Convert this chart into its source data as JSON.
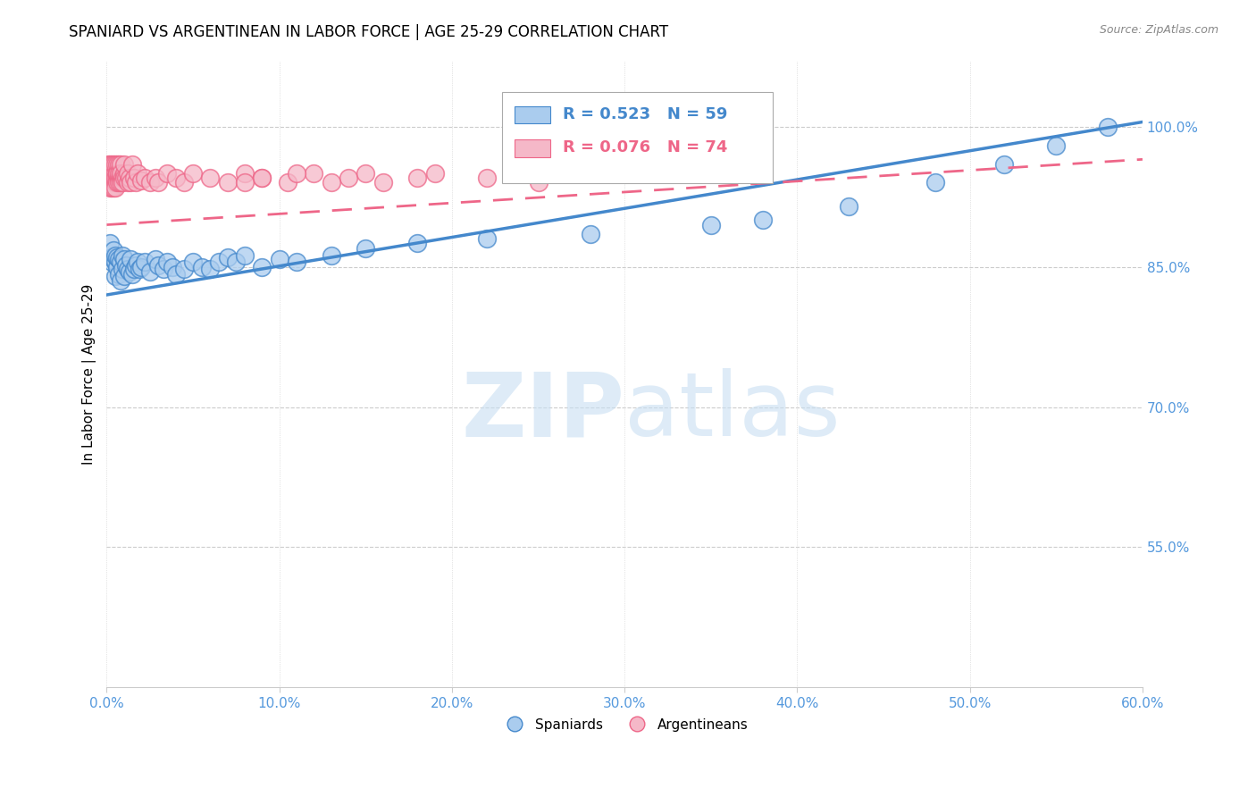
{
  "title": "SPANIARD VS ARGENTINEAN IN LABOR FORCE | AGE 25-29 CORRELATION CHART",
  "source_text": "Source: ZipAtlas.com",
  "ylabel": "In Labor Force | Age 25-29",
  "xlim": [
    0.0,
    0.6
  ],
  "ylim": [
    0.4,
    1.07
  ],
  "xticks": [
    0.0,
    0.1,
    0.2,
    0.3,
    0.4,
    0.5,
    0.6
  ],
  "xtick_labels": [
    "0.0%",
    "10.0%",
    "20.0%",
    "30.0%",
    "40.0%",
    "50.0%",
    "60.0%"
  ],
  "ytick_values": [
    0.55,
    0.7,
    0.85,
    1.0
  ],
  "ytick_labels": [
    "55.0%",
    "70.0%",
    "85.0%",
    "100.0%"
  ],
  "legend_blue_r": "R = 0.523",
  "legend_blue_n": "N = 59",
  "legend_pink_r": "R = 0.076",
  "legend_pink_n": "N = 74",
  "blue_color": "#aaccee",
  "pink_color": "#f5b8c8",
  "blue_line_color": "#4488cc",
  "pink_line_color": "#ee6688",
  "axis_color": "#5599dd",
  "grid_color": "#cccccc",
  "title_fontsize": 12,
  "label_fontsize": 11,
  "tick_fontsize": 11,
  "blue_trend_x0": 0.0,
  "blue_trend_y0": 0.82,
  "blue_trend_x1": 0.6,
  "blue_trend_y1": 1.005,
  "pink_trend_x0": 0.0,
  "pink_trend_y0": 0.895,
  "pink_trend_x1": 0.6,
  "pink_trend_y1": 0.965,
  "blue_scatter_x": [
    0.002,
    0.003,
    0.003,
    0.004,
    0.004,
    0.005,
    0.005,
    0.005,
    0.006,
    0.006,
    0.007,
    0.007,
    0.008,
    0.008,
    0.009,
    0.009,
    0.01,
    0.01,
    0.011,
    0.012,
    0.013,
    0.014,
    0.015,
    0.016,
    0.017,
    0.018,
    0.019,
    0.02,
    0.022,
    0.025,
    0.028,
    0.03,
    0.033,
    0.035,
    0.038,
    0.04,
    0.045,
    0.05,
    0.055,
    0.06,
    0.065,
    0.07,
    0.075,
    0.08,
    0.09,
    0.1,
    0.11,
    0.13,
    0.15,
    0.18,
    0.22,
    0.28,
    0.35,
    0.38,
    0.43,
    0.48,
    0.52,
    0.55,
    0.58
  ],
  "blue_scatter_y": [
    0.875,
    0.86,
    0.855,
    0.858,
    0.868,
    0.84,
    0.855,
    0.862,
    0.85,
    0.86,
    0.842,
    0.858,
    0.835,
    0.855,
    0.848,
    0.862,
    0.84,
    0.858,
    0.852,
    0.848,
    0.845,
    0.858,
    0.842,
    0.848,
    0.852,
    0.855,
    0.848,
    0.85,
    0.855,
    0.845,
    0.858,
    0.852,
    0.848,
    0.855,
    0.85,
    0.842,
    0.848,
    0.855,
    0.85,
    0.848,
    0.855,
    0.86,
    0.855,
    0.862,
    0.85,
    0.858,
    0.855,
    0.862,
    0.87,
    0.875,
    0.88,
    0.885,
    0.895,
    0.9,
    0.915,
    0.94,
    0.96,
    0.98,
    1.0
  ],
  "pink_scatter_x": [
    0.001,
    0.001,
    0.001,
    0.002,
    0.002,
    0.002,
    0.002,
    0.003,
    0.003,
    0.003,
    0.003,
    0.003,
    0.004,
    0.004,
    0.004,
    0.004,
    0.005,
    0.005,
    0.005,
    0.005,
    0.005,
    0.006,
    0.006,
    0.006,
    0.006,
    0.006,
    0.007,
    0.007,
    0.007,
    0.007,
    0.008,
    0.008,
    0.008,
    0.008,
    0.009,
    0.009,
    0.01,
    0.01,
    0.01,
    0.011,
    0.012,
    0.012,
    0.013,
    0.014,
    0.015,
    0.016,
    0.017,
    0.018,
    0.02,
    0.022,
    0.025,
    0.028,
    0.03,
    0.035,
    0.04,
    0.045,
    0.05,
    0.06,
    0.07,
    0.08,
    0.09,
    0.105,
    0.12,
    0.14,
    0.16,
    0.19,
    0.22,
    0.25,
    0.15,
    0.18,
    0.13,
    0.11,
    0.09,
    0.08
  ],
  "pink_scatter_y": [
    0.96,
    0.94,
    0.95,
    0.945,
    0.935,
    0.95,
    0.96,
    0.945,
    0.94,
    0.96,
    0.95,
    0.935,
    0.945,
    0.95,
    0.935,
    0.96,
    0.94,
    0.95,
    0.96,
    0.945,
    0.935,
    0.945,
    0.95,
    0.96,
    0.94,
    0.95,
    0.945,
    0.94,
    0.96,
    0.95,
    0.945,
    0.94,
    0.96,
    0.95,
    0.945,
    0.94,
    0.95,
    0.945,
    0.96,
    0.945,
    0.94,
    0.95,
    0.945,
    0.94,
    0.96,
    0.945,
    0.94,
    0.95,
    0.942,
    0.945,
    0.94,
    0.945,
    0.94,
    0.95,
    0.945,
    0.94,
    0.95,
    0.945,
    0.94,
    0.95,
    0.945,
    0.94,
    0.95,
    0.945,
    0.94,
    0.95,
    0.945,
    0.94,
    0.95,
    0.945,
    0.94,
    0.95,
    0.945,
    0.94
  ]
}
